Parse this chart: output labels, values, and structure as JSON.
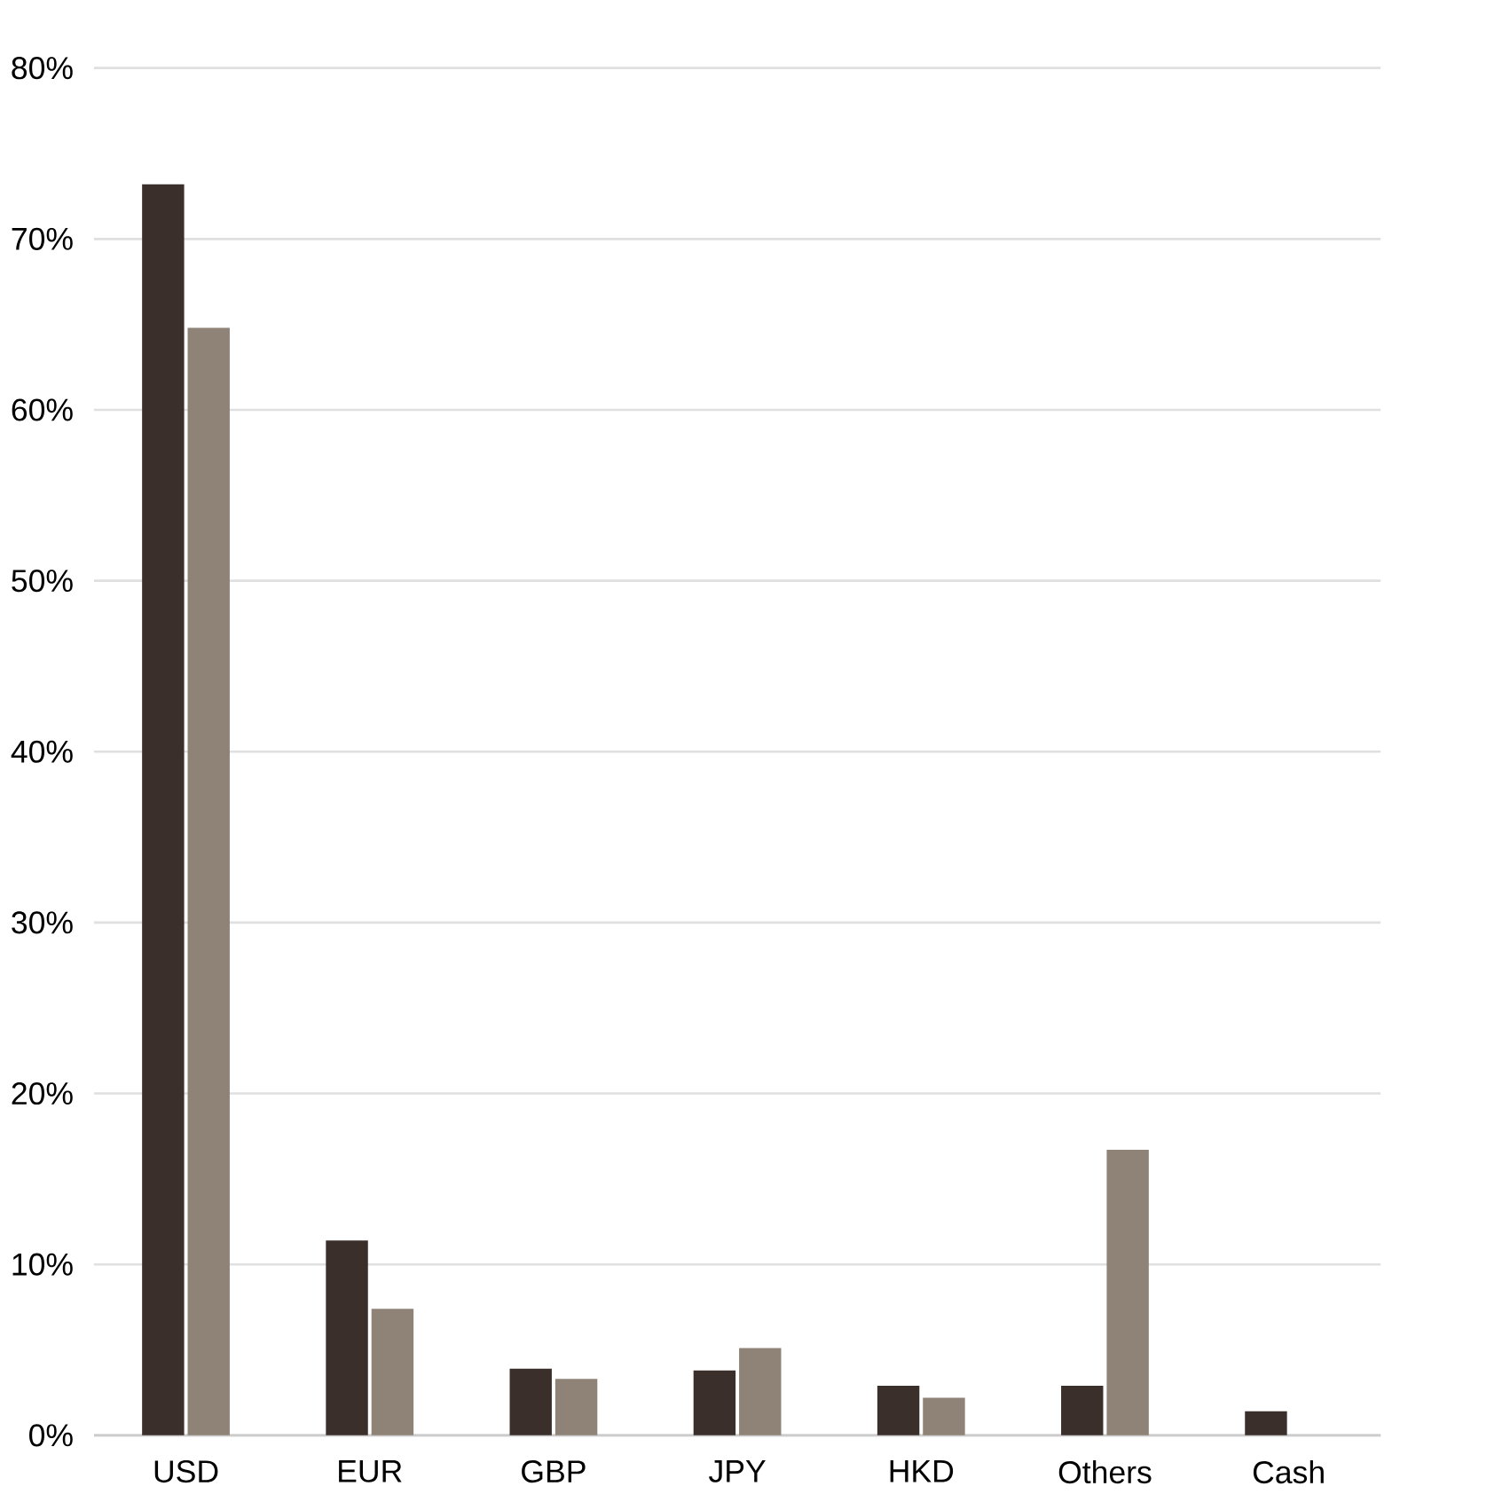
{
  "chart_data": {
    "type": "bar",
    "categories": [
      "USD",
      "EUR",
      "GBP",
      "JPY",
      "HKD",
      "Others",
      "Cash"
    ],
    "series": [
      {
        "color": "#3b2f2c",
        "values": [
          73.2,
          11.4,
          3.9,
          3.8,
          2.9,
          2.9,
          1.4
        ]
      },
      {
        "color": "#8f8378",
        "values": [
          64.8,
          7.4,
          3.3,
          5.1,
          2.2,
          16.7,
          null
        ]
      }
    ],
    "ylim": [
      0,
      80
    ],
    "yticks": [
      {
        "value": 0,
        "label": "0%"
      },
      {
        "value": 10,
        "label": "10%"
      },
      {
        "value": 20,
        "label": "20%"
      },
      {
        "value": 30,
        "label": "30%"
      },
      {
        "value": 40,
        "label": "40%"
      },
      {
        "value": 50,
        "label": "50%"
      },
      {
        "value": 60,
        "label": "60%"
      },
      {
        "value": 70,
        "label": "70%"
      },
      {
        "value": 80,
        "label": "80%"
      }
    ],
    "grid": "y"
  }
}
